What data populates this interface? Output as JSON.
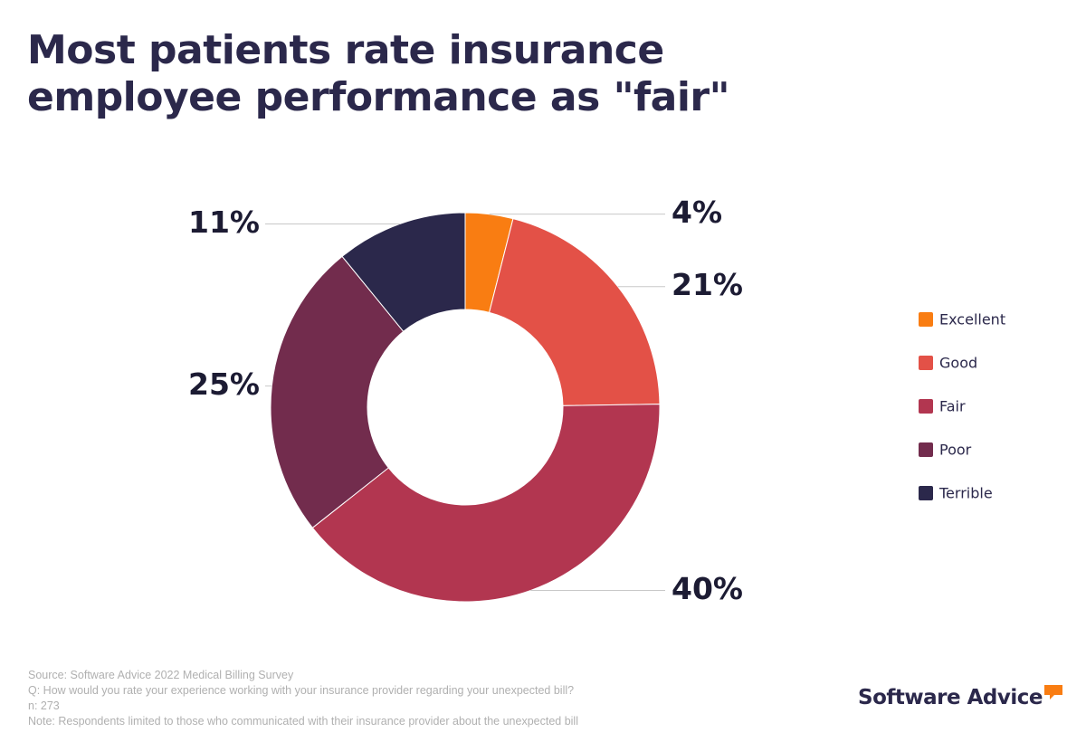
{
  "chart_data": {
    "type": "donut",
    "title": "Most patients rate insurance employee performance as \"fair\"",
    "categories": [
      "Excellent",
      "Good",
      "Fair",
      "Poor",
      "Terrible"
    ],
    "values": [
      4,
      21,
      40,
      25,
      11
    ],
    "value_labels": [
      "4%",
      "21%",
      "40%",
      "25%",
      "11%"
    ],
    "colors": [
      "#f97d12",
      "#e35147",
      "#b23650",
      "#722c4d",
      "#2b284b"
    ]
  },
  "notes": [
    "Source: Software Advice 2022 Medical Billing Survey",
    "Q: How would you rate your experience working with your insurance provider regarding your unexpected bill?",
    "n: 273",
    "Note: Respondents limited to those who communicated with their insurance provider about the unexpected bill"
  ],
  "brand": "Software Advice"
}
